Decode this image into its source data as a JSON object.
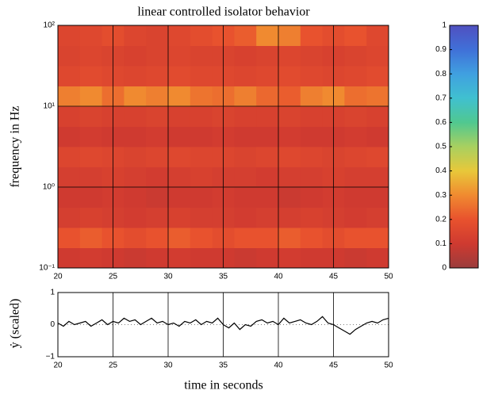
{
  "chart_data": [
    {
      "type": "heatmap",
      "title": "linear controlled isolator behavior",
      "ylabel": "frequency in Hz",
      "xlim": [
        20,
        50
      ],
      "xticks": [
        20,
        25,
        30,
        35,
        40,
        45,
        50
      ],
      "ylim": [
        0.1,
        100
      ],
      "log_y": true,
      "yticks": [
        {
          "value": 0.1,
          "label": "10⁻¹"
        },
        {
          "value": 1,
          "label": "10⁰"
        },
        {
          "value": 10,
          "label": "10¹"
        },
        {
          "value": 100,
          "label": "10²"
        }
      ],
      "grid": true,
      "z": [
        [
          0.1,
          0.11,
          0.1,
          0.09,
          0.1,
          0.11,
          0.1,
          0.1,
          0.09,
          0.1,
          0.11,
          0.1,
          0.1,
          0.09,
          0.1
        ],
        [
          0.2,
          0.22,
          0.2,
          0.18,
          0.2,
          0.22,
          0.2,
          0.18,
          0.2,
          0.2,
          0.22,
          0.2,
          0.18,
          0.2,
          0.2
        ],
        [
          0.12,
          0.13,
          0.12,
          0.11,
          0.12,
          0.13,
          0.12,
          0.12,
          0.11,
          0.12,
          0.12,
          0.13,
          0.12,
          0.11,
          0.12
        ],
        [
          0.1,
          0.1,
          0.11,
          0.1,
          0.09,
          0.1,
          0.1,
          0.11,
          0.1,
          0.1,
          0.09,
          0.1,
          0.11,
          0.1,
          0.1
        ],
        [
          0.12,
          0.12,
          0.13,
          0.12,
          0.11,
          0.12,
          0.13,
          0.12,
          0.12,
          0.11,
          0.12,
          0.12,
          0.13,
          0.12,
          0.12
        ],
        [
          0.15,
          0.16,
          0.15,
          0.14,
          0.15,
          0.16,
          0.15,
          0.15,
          0.14,
          0.15,
          0.16,
          0.15,
          0.14,
          0.15,
          0.16
        ],
        [
          0.1,
          0.11,
          0.1,
          0.1,
          0.11,
          0.1,
          0.1,
          0.11,
          0.1,
          0.1,
          0.11,
          0.1,
          0.1,
          0.11,
          0.1
        ],
        [
          0.13,
          0.14,
          0.13,
          0.13,
          0.14,
          0.13,
          0.13,
          0.14,
          0.13,
          0.13,
          0.14,
          0.13,
          0.13,
          0.14,
          0.13
        ],
        [
          0.28,
          0.3,
          0.25,
          0.3,
          0.28,
          0.3,
          0.26,
          0.25,
          0.28,
          0.24,
          0.22,
          0.28,
          0.3,
          0.25,
          0.26
        ],
        [
          0.16,
          0.17,
          0.16,
          0.15,
          0.16,
          0.17,
          0.16,
          0.16,
          0.15,
          0.16,
          0.17,
          0.16,
          0.15,
          0.16,
          0.17
        ],
        [
          0.14,
          0.15,
          0.14,
          0.13,
          0.14,
          0.15,
          0.14,
          0.14,
          0.13,
          0.14,
          0.15,
          0.14,
          0.13,
          0.14,
          0.15
        ],
        [
          0.15,
          0.16,
          0.18,
          0.15,
          0.14,
          0.16,
          0.18,
          0.2,
          0.22,
          0.3,
          0.28,
          0.2,
          0.18,
          0.2,
          0.16
        ]
      ],
      "clim": [
        0,
        1
      ],
      "cticks": [
        0,
        0.1,
        0.2,
        0.3,
        0.4,
        0.5,
        0.6,
        0.7,
        0.8,
        0.9,
        1
      ],
      "colormap": [
        "#9b3c3c",
        "#cf3a30",
        "#e8522e",
        "#f08a30",
        "#e8c83a",
        "#a8d060",
        "#50c890",
        "#40c0d0",
        "#40a0e0",
        "#4070d8",
        "#5050c0"
      ]
    },
    {
      "type": "line",
      "xlabel": "time in seconds",
      "ylabel": "ẏ (scaled)",
      "xlim": [
        20,
        50
      ],
      "xticks": [
        20,
        25,
        30,
        35,
        40,
        45,
        50
      ],
      "ylim": [
        -1,
        1
      ],
      "yticks": [
        {
          "value": -1,
          "label": "−1"
        },
        0,
        1
      ],
      "grid": true,
      "x": [
        20,
        20.5,
        21,
        21.5,
        22,
        22.5,
        23,
        23.5,
        24,
        24.5,
        25,
        25.5,
        26,
        26.5,
        27,
        27.5,
        28,
        28.5,
        29,
        29.5,
        30,
        30.5,
        31,
        31.5,
        32,
        32.5,
        33,
        33.5,
        34,
        34.5,
        35,
        35.5,
        36,
        36.5,
        37,
        37.5,
        38,
        38.5,
        39,
        39.5,
        40,
        40.5,
        41,
        41.5,
        42,
        42.5,
        43,
        43.5,
        44,
        44.5,
        45,
        45.5,
        46,
        46.5,
        47,
        47.5,
        48,
        48.5,
        49,
        49.5,
        50
      ],
      "series": [
        {
          "color": "#000000",
          "values": [
            0.05,
            -0.05,
            0.1,
            0.0,
            0.05,
            0.1,
            -0.05,
            0.05,
            0.15,
            0.0,
            0.1,
            0.05,
            0.2,
            0.1,
            0.15,
            0.0,
            0.1,
            0.2,
            0.05,
            0.1,
            0.0,
            0.05,
            -0.05,
            0.1,
            0.05,
            0.15,
            0.0,
            0.1,
            0.05,
            0.2,
            0.0,
            -0.1,
            0.05,
            -0.15,
            0.0,
            -0.05,
            0.1,
            0.15,
            0.05,
            0.1,
            0.0,
            0.2,
            0.05,
            0.1,
            0.15,
            0.05,
            0.0,
            0.1,
            0.25,
            0.05,
            0.0,
            -0.1,
            -0.2,
            -0.3,
            -0.15,
            -0.05,
            0.05,
            0.1,
            0.05,
            0.15,
            0.2
          ]
        }
      ]
    }
  ]
}
